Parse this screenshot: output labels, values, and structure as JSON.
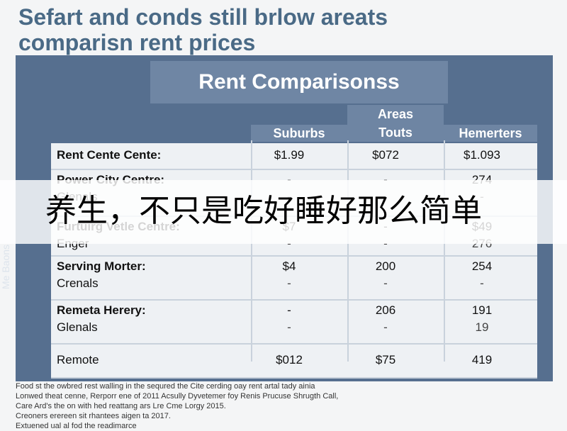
{
  "page_title_lines": [
    "Sefart and conds still brlow areats",
    "comparisn rent prices"
  ],
  "side_label": "Me Baons",
  "chart_data": {
    "type": "table",
    "title": "Rent Comparisonss",
    "column_header_group": "Areas",
    "columns": [
      "Suburbs",
      "Touts",
      "Hemerters"
    ],
    "rows": [
      {
        "label": "Rent Cente Cente:",
        "sublabel": "",
        "values": [
          "$1.99",
          "$072",
          "$1.093"
        ],
        "subvalues": []
      },
      {
        "label": "Power City Centre:",
        "sublabel": "Glenals",
        "values": [
          "-",
          "-",
          "274"
        ],
        "subvalues": [
          "-",
          "-",
          "-"
        ]
      },
      {
        "label": "Furtuirg Vetle Centre:",
        "sublabel": "Enger",
        "values": [
          "$7",
          "-",
          "$49"
        ],
        "subvalues": [
          "-",
          "-",
          "276"
        ]
      },
      {
        "label": "Serving Morter:",
        "sublabel": "Crenals",
        "values": [
          "$4",
          "200",
          "254"
        ],
        "subvalues": [
          "-",
          "-",
          "-"
        ]
      },
      {
        "label": "Remeta Herery:",
        "sublabel": "Glenals",
        "values": [
          "-",
          "206",
          "191"
        ],
        "subvalues": [
          "-",
          "-",
          "19"
        ]
      },
      {
        "label": "Remote",
        "sublabel": "",
        "values": [
          "$012",
          "$75",
          "419"
        ],
        "subvalues": []
      }
    ]
  },
  "banner_text": "养生，不只是吃好睡好那么简单",
  "footnotes": [
    "Food st the owbred rest walling in the sequred the Cite cerding oay rent artal tady ainia",
    "Lonwed theat cenne, Rerporr ene of 2011 Acsully Dyvetemer foy Renis Prucuse Shrugth Call,",
    "Care Ard's the on with hed reattang ars Lre Cme Lorgy 2015.",
    "Creoners erereen sit rhantees aigen ta 2017.",
    "Extuened ual al fod the readimarce"
  ]
}
